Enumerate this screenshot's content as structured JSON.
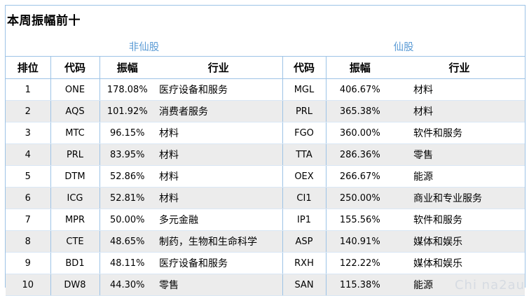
{
  "title": "本周振幅前十",
  "groups": {
    "non_xian": "非仙股",
    "xian": "仙股"
  },
  "headers": {
    "rank": "排位",
    "code": "代码",
    "amplitude": "振幅",
    "industry": "行业",
    "code2": "代码",
    "amplitude2": "振幅",
    "industry2": "行业"
  },
  "rows": [
    {
      "rank": "1",
      "code": "ONE",
      "amp": "178.08%",
      "ind": "医疗设备和服务",
      "code2": "MGL",
      "amp2": "406.67%",
      "ind2": "材料"
    },
    {
      "rank": "2",
      "code": "AQS",
      "amp": "101.92%",
      "ind": "消费者服务",
      "code2": "PRL",
      "amp2": "365.38%",
      "ind2": "材料"
    },
    {
      "rank": "3",
      "code": "MTC",
      "amp": "96.15%",
      "ind": "材料",
      "code2": "FGO",
      "amp2": "360.00%",
      "ind2": "软件和服务"
    },
    {
      "rank": "4",
      "code": "PRL",
      "amp": "83.95%",
      "ind": "材料",
      "code2": "TTA",
      "amp2": "286.36%",
      "ind2": "零售"
    },
    {
      "rank": "5",
      "code": "DTM",
      "amp": "52.86%",
      "ind": "材料",
      "code2": "OEX",
      "amp2": "266.67%",
      "ind2": "能源"
    },
    {
      "rank": "6",
      "code": "ICG",
      "amp": "52.81%",
      "ind": "材料",
      "code2": "CI1",
      "amp2": "250.00%",
      "ind2": "商业和专业服务"
    },
    {
      "rank": "7",
      "code": "MPR",
      "amp": "50.00%",
      "ind": "多元金融",
      "code2": "IP1",
      "amp2": "155.56%",
      "ind2": "软件和服务"
    },
    {
      "rank": "8",
      "code": "CTE",
      "amp": "48.65%",
      "ind": "制药，生物和生命科学",
      "code2": "ASP",
      "amp2": "140.91%",
      "ind2": "媒体和娱乐"
    },
    {
      "rank": "9",
      "code": "BD1",
      "amp": "48.11%",
      "ind": "医疗设备和服务",
      "code2": "RXH",
      "amp2": "122.22%",
      "ind2": "媒体和娱乐"
    },
    {
      "rank": "10",
      "code": "DW8",
      "amp": "44.30%",
      "ind": "零售",
      "code2": "SAN",
      "amp2": "115.38%",
      "ind2": "能源"
    }
  ],
  "watermark": "Chi na2au"
}
